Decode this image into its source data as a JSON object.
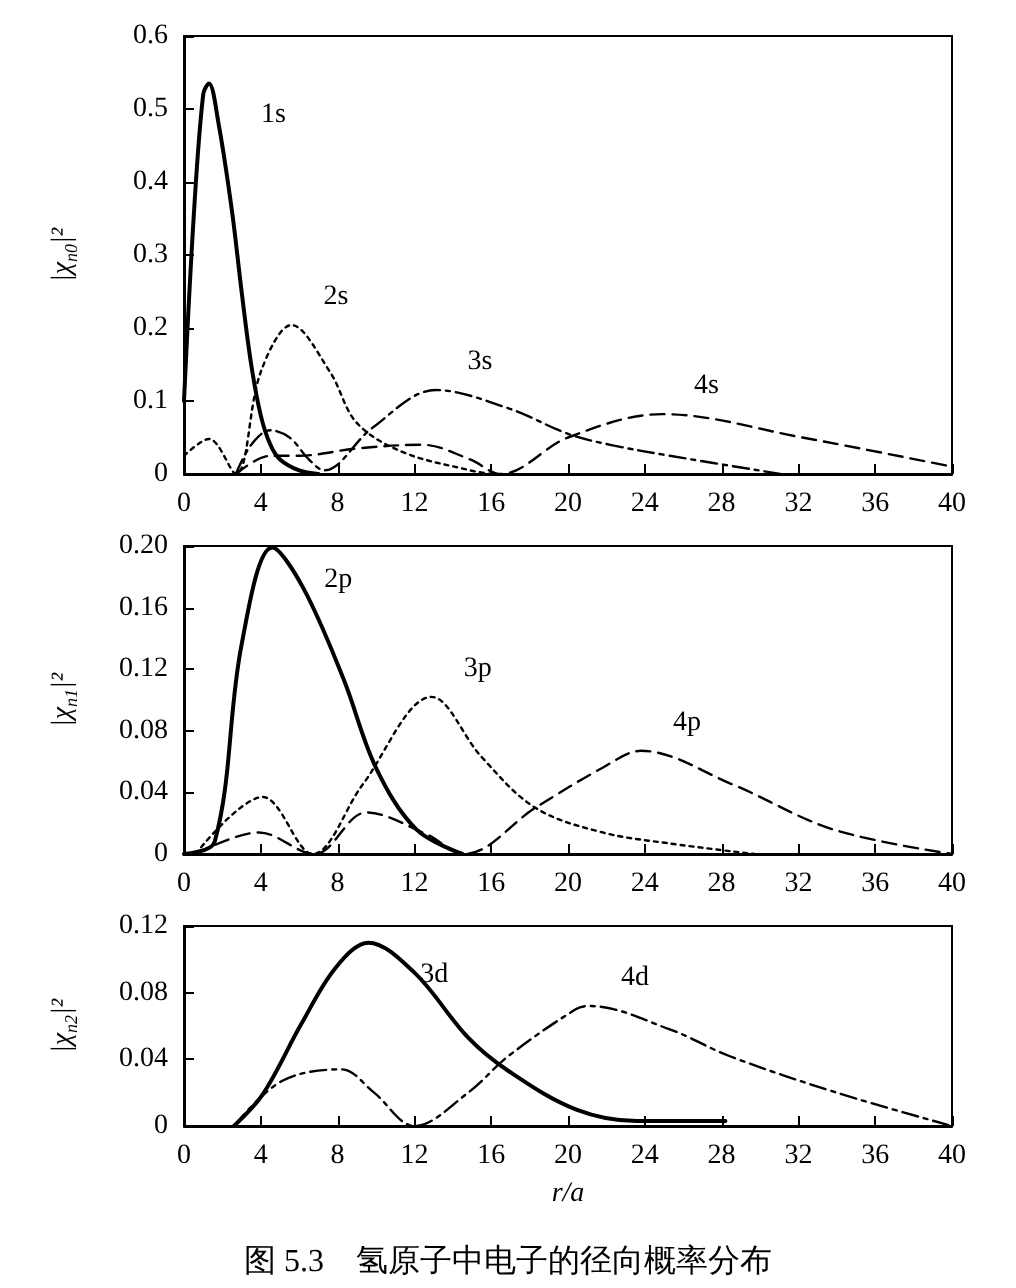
{
  "chart_data": [
    {
      "type": "line",
      "ylabel": "|χ$_{n0}$|²",
      "marker": "none",
      "xlim": [
        0,
        40
      ],
      "xticks": [
        0,
        4,
        8,
        12,
        16,
        20,
        24,
        28,
        32,
        36,
        40
      ],
      "ylim": [
        0,
        0.6
      ],
      "yticks": [
        0,
        0.1,
        0.2,
        0.3,
        0.4,
        0.5,
        0.6
      ],
      "series": [
        {
          "name": "1s",
          "color": "#000000",
          "line_style": "solid",
          "x": [
            0,
            0.5,
            1,
            1.3,
            1.8,
            2.5,
            3,
            3.5,
            4,
            4.5,
            5,
            6,
            7
          ],
          "values": [
            0.1,
            0.35,
            0.52,
            0.535,
            0.48,
            0.36,
            0.25,
            0.15,
            0.08,
            0.04,
            0.02,
            0.005,
            0
          ]
        },
        {
          "name": "2s",
          "color": "#000000",
          "line_style": "dotted",
          "x": [
            0,
            1.3,
            2.7,
            4,
            5.6,
            7.6,
            9,
            11.4,
            14.9,
            16
          ],
          "values": [
            0.025,
            0.048,
            0,
            0.14,
            0.204,
            0.14,
            0.07,
            0.03,
            0.005,
            0
          ]
        },
        {
          "name": "3s",
          "color": "#000000",
          "line_style": "dashdot",
          "x": [
            2.7,
            3.5,
            4.5,
            5.5,
            6.5,
            7.3,
            9.8,
            13.1,
            16.9,
            20,
            22.2,
            25.3,
            31.1
          ],
          "values": [
            0,
            0.04,
            0.06,
            0.05,
            0.02,
            0.005,
            0.063,
            0.115,
            0.09,
            0.055,
            0.04,
            0.025,
            0
          ]
        },
        {
          "name": "4s",
          "color": "#000000",
          "line_style": "dashed",
          "x": [
            2.7,
            4.5,
            6,
            9,
            12.4,
            14.9,
            16.5,
            20,
            24.9,
            32.2,
            40
          ],
          "values": [
            0,
            0.025,
            0.025,
            0.035,
            0.04,
            0.02,
            0,
            0.05,
            0.082,
            0.05,
            0.01
          ]
        }
      ]
    },
    {
      "type": "line",
      "ylabel": "|χ$_{n1}$|²",
      "marker": "none",
      "xlim": [
        0,
        40
      ],
      "xticks": [
        0,
        4,
        8,
        12,
        16,
        20,
        24,
        28,
        32,
        36,
        40
      ],
      "ylim": [
        0,
        0.2
      ],
      "yticks": [
        0,
        0.04,
        0.08,
        0.12,
        0.16,
        {
          "value": 0.2,
          "label": "0.20"
        }
      ],
      "series": [
        {
          "name": "2p",
          "color": "#000000",
          "line_style": "solid",
          "x": [
            0,
            1.6,
            3,
            4.6,
            6.2,
            8.3,
            10,
            12.1,
            14.5
          ],
          "values": [
            0,
            0.008,
            0.136,
            0.199,
            0.173,
            0.114,
            0.056,
            0.016,
            0
          ]
        },
        {
          "name": "3p",
          "color": "#000000",
          "line_style": "dotted",
          "x": [
            0.6,
            4.1,
            6.7,
            9.3,
            12.9,
            15.5,
            18.3,
            21.8,
            25.2,
            29.7
          ],
          "values": [
            0,
            0.037,
            0,
            0.045,
            0.102,
            0.063,
            0.03,
            0.014,
            0.007,
            0
          ]
        },
        {
          "name": "4p",
          "color": "#000000",
          "line_style": "dashed",
          "x": [
            0.6,
            3.9,
            6.8,
            9.5,
            12.6,
            14.6,
            18.3,
            21.8,
            23.8,
            28.6,
            33.8,
            40
          ],
          "values": [
            0,
            0.014,
            0,
            0.027,
            0.013,
            0,
            0.03,
            0.056,
            0.067,
            0.045,
            0.016,
            0
          ]
        }
      ]
    },
    {
      "type": "line",
      "ylabel": "|χ$_{n2}$|²",
      "xlabel": "r/a",
      "marker": "none",
      "xlim": [
        0,
        40
      ],
      "xticks": [
        0,
        4,
        8,
        12,
        16,
        20,
        24,
        28,
        32,
        36,
        40
      ],
      "ylim": [
        0,
        0.12
      ],
      "yticks": [
        0,
        0.04,
        0.08,
        0.12
      ],
      "series": [
        {
          "name": "3d",
          "color": "#000000",
          "line_style": "solid",
          "x": [
            2.6,
            4.1,
            6.1,
            7.9,
            9.6,
            12,
            14.8,
            16.9,
            20.4,
            23.6,
            28.2
          ],
          "values": [
            0,
            0.019,
            0.061,
            0.095,
            0.11,
            0.092,
            0.053,
            0.033,
            0.01,
            0.003,
            0.003
          ]
        },
        {
          "name": "4d",
          "color": "#000000",
          "line_style": "dashdot",
          "x": [
            2.6,
            5.1,
            8.2,
            9.9,
            12,
            14.8,
            16.9,
            20.4,
            21.1,
            25.3,
            28.4,
            34,
            40
          ],
          "values": [
            0,
            0.027,
            0.034,
            0.02,
            0,
            0.02,
            0.042,
            0.07,
            0.072,
            0.058,
            0.042,
            0.02,
            0
          ]
        }
      ],
      "annotations": [
        "图 5.3　氢原子中电子的径向概率分布"
      ]
    }
  ]
}
